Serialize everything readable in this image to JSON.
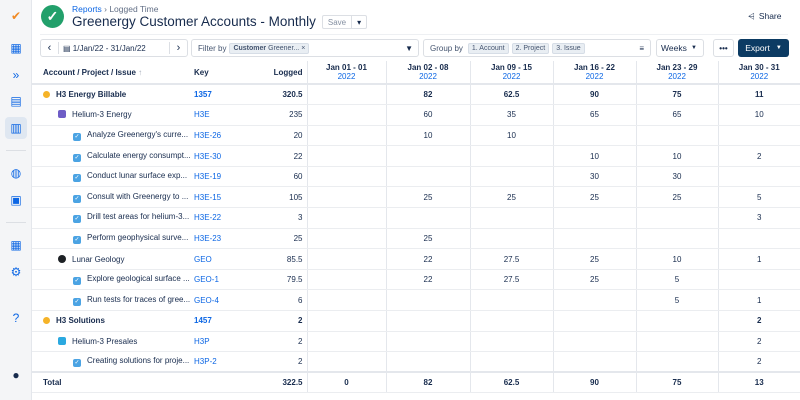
{
  "breadcrumb": {
    "parent": "Reports",
    "current": "Logged Time"
  },
  "title": "Greenergy Customer Accounts - Monthly",
  "save_label": "Save",
  "share_label": "Share",
  "date_range": "1/Jan/22 - 31/Jan/22",
  "filter": {
    "label": "Filter by",
    "chip_key": "Customer",
    "chip_value": "Greener..."
  },
  "group_by": {
    "label": "Group by",
    "chips": [
      "1. Account",
      "2. Project",
      "3. Issue"
    ]
  },
  "period": "Weeks",
  "export_label": "Export",
  "colors": {
    "accent": "#0c66e4",
    "export": "#0c3b63",
    "success": "#22a06b"
  },
  "columns": {
    "name": "Account / Project / Issue",
    "key": "Key",
    "logged": "Logged",
    "weeks": [
      {
        "range": "Jan 01 - 01",
        "year": "2022"
      },
      {
        "range": "Jan 02 - 08",
        "year": "2022"
      },
      {
        "range": "Jan 09 - 15",
        "year": "2022"
      },
      {
        "range": "Jan 16 - 22",
        "year": "2022"
      },
      {
        "range": "Jan 23 - 29",
        "year": "2022"
      },
      {
        "range": "Jan 30 - 31",
        "year": "2022"
      }
    ]
  },
  "rows": [
    {
      "type": "account",
      "name": "H3 Energy Billable",
      "key": "1357",
      "logged": "320.5",
      "weeks": [
        "",
        "82",
        "62.5",
        "90",
        "75",
        "11"
      ]
    },
    {
      "type": "project",
      "icon": "proj",
      "name": "Helium-3 Energy",
      "key": "H3E",
      "logged": "235",
      "weeks": [
        "",
        "60",
        "35",
        "65",
        "65",
        "10"
      ]
    },
    {
      "type": "issue",
      "name": "Analyze Greenergy's curre...",
      "key": "H3E-26",
      "logged": "20",
      "weeks": [
        "",
        "10",
        "10",
        "",
        "",
        ""
      ]
    },
    {
      "type": "issue",
      "name": "Calculate energy consumpt...",
      "key": "H3E-30",
      "logged": "22",
      "weeks": [
        "",
        "",
        "",
        "10",
        "10",
        "2"
      ]
    },
    {
      "type": "issue",
      "name": "Conduct lunar surface exp...",
      "key": "H3E-19",
      "logged": "60",
      "weeks": [
        "",
        "",
        "",
        "30",
        "30",
        ""
      ]
    },
    {
      "type": "issue",
      "name": "Consult with Greenergy to ...",
      "key": "H3E-15",
      "logged": "105",
      "weeks": [
        "",
        "25",
        "25",
        "25",
        "25",
        "5"
      ]
    },
    {
      "type": "issue",
      "name": "Drill test areas for helium-3...",
      "key": "H3E-22",
      "logged": "3",
      "weeks": [
        "",
        "",
        "",
        "",
        "",
        "3"
      ]
    },
    {
      "type": "issue",
      "name": "Perform geophysical surve...",
      "key": "H3E-23",
      "logged": "25",
      "weeks": [
        "",
        "25",
        "",
        "",
        "",
        ""
      ]
    },
    {
      "type": "project",
      "icon": "geo",
      "name": "Lunar Geology",
      "key": "GEO",
      "logged": "85.5",
      "weeks": [
        "",
        "22",
        "27.5",
        "25",
        "10",
        "1"
      ]
    },
    {
      "type": "issue",
      "name": "Explore geological surface ...",
      "key": "GEO-1",
      "logged": "79.5",
      "weeks": [
        "",
        "22",
        "27.5",
        "25",
        "5",
        ""
      ]
    },
    {
      "type": "issue",
      "name": "Run tests for traces of gree...",
      "key": "GEO-4",
      "logged": "6",
      "weeks": [
        "",
        "",
        "",
        "",
        "5",
        "1"
      ]
    },
    {
      "type": "account",
      "name": "H3 Solutions",
      "key": "1457",
      "logged": "2",
      "weeks": [
        "",
        "",
        "",
        "",
        "",
        "2"
      ]
    },
    {
      "type": "project",
      "icon": "h3p",
      "name": "Helium-3 Presales",
      "key": "H3P",
      "logged": "2",
      "weeks": [
        "",
        "",
        "",
        "",
        "",
        "2"
      ]
    },
    {
      "type": "issue",
      "name": "Creating solutions for proje...",
      "key": "H3P-2",
      "logged": "2",
      "weeks": [
        "",
        "",
        "",
        "",
        "",
        "2"
      ]
    }
  ],
  "total": {
    "label": "Total",
    "logged": "322.5",
    "weeks": [
      "0",
      "82",
      "62.5",
      "90",
      "75",
      "13"
    ]
  }
}
